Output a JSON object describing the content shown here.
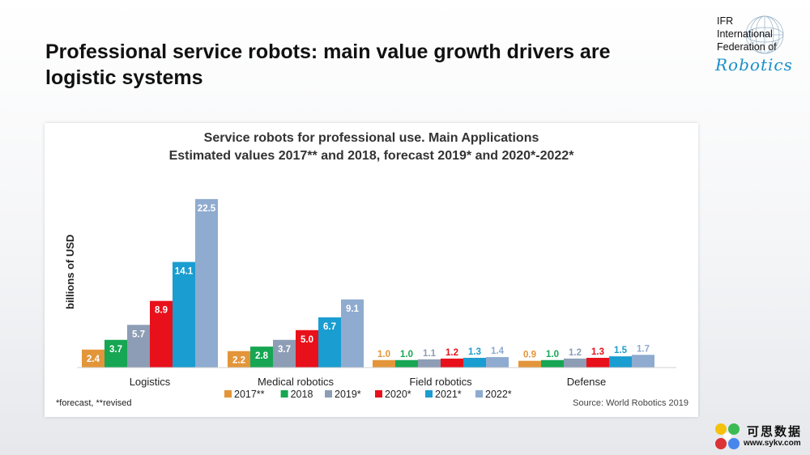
{
  "slide": {
    "title": "Professional service robots: main value growth drivers are logistic systems"
  },
  "logo": {
    "line1": "IFR",
    "line2": "International",
    "line3": "Federation of",
    "line4": "Robotics"
  },
  "chart_data": {
    "type": "bar",
    "title": "Service robots for professional  use. Main Applications",
    "subtitle": "Estimated values 2017** and 2018, forecast 2019* and 2020*-2022*",
    "ylabel": "billions of USD",
    "xlabel": "",
    "categories": [
      "Logistics",
      "Medical robotics",
      "Field robotics",
      "Defense"
    ],
    "series": [
      {
        "name": "2017**",
        "color": "#e3953a",
        "values": [
          2.4,
          2.2,
          1.0,
          0.9
        ]
      },
      {
        "name": "2018",
        "color": "#17a653",
        "values": [
          3.7,
          2.8,
          1.0,
          1.0
        ]
      },
      {
        "name": "2019*",
        "color": "#8d9db5",
        "values": [
          5.7,
          3.7,
          1.1,
          1.2
        ]
      },
      {
        "name": "2020*",
        "color": "#e8111b",
        "values": [
          8.9,
          5.0,
          1.2,
          1.3
        ]
      },
      {
        "name": "2021*",
        "color": "#1a9dd0",
        "values": [
          14.1,
          6.7,
          1.3,
          1.5
        ]
      },
      {
        "name": "2022*",
        "color": "#8fabcf",
        "values": [
          22.5,
          9.1,
          1.4,
          1.7
        ]
      }
    ],
    "ylim": [
      0,
      24
    ],
    "grid": false,
    "legend_position": "bottom"
  },
  "footnote": "*forecast, **revised",
  "source": "Source: World Robotics 2019",
  "watermark": {
    "chinese": "可思数据",
    "url": "www.sykv.com"
  }
}
